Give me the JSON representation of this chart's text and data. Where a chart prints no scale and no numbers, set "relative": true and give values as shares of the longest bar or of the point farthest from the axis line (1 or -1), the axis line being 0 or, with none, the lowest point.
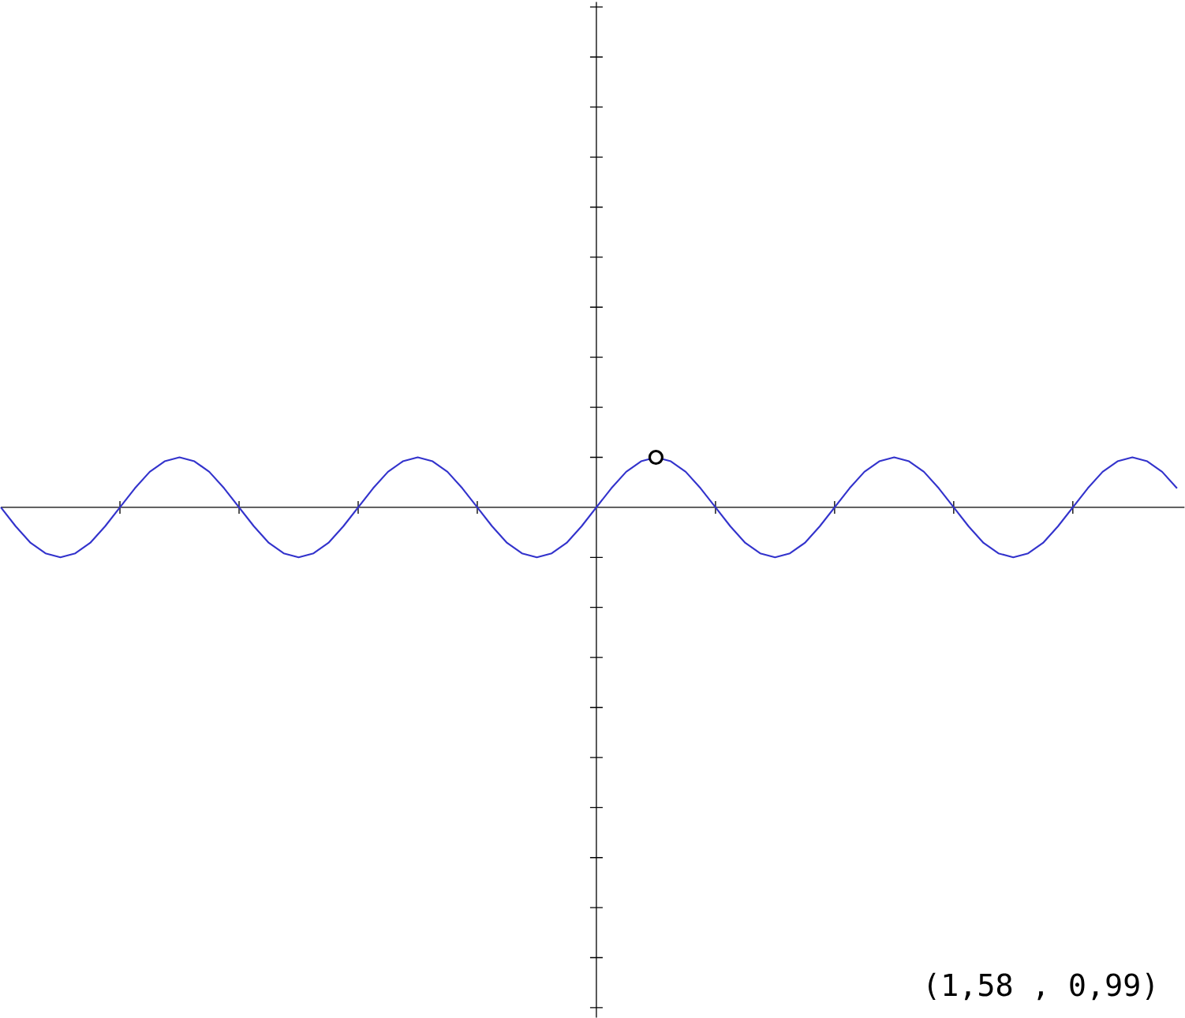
{
  "chart_data": {
    "type": "line",
    "relative": true,
    "categories": [
      null,
      null,
      null,
      null,
      null,
      null,
      null,
      null,
      null,
      null,
      null,
      null,
      null,
      null,
      null,
      null,
      null,
      null,
      null,
      null,
      null,
      null,
      null,
      null,
      null,
      null,
      null,
      null,
      null,
      null,
      null,
      null,
      null,
      null,
      null,
      null,
      null,
      null,
      null,
      null,
      null,
      null,
      null,
      null,
      null,
      null,
      null,
      null,
      null,
      null,
      null,
      null,
      null,
      null,
      null,
      null,
      null,
      null,
      null,
      null,
      null,
      null,
      null,
      null,
      null,
      null,
      null,
      null,
      null,
      null,
      null,
      null,
      null,
      null,
      null,
      null,
      null,
      null,
      null,
      null
    ],
    "series": [
      {
        "color": "#3333cc",
        "values": [
          0,
          -0.38,
          -0.71,
          -0.92,
          -1,
          -0.92,
          -0.71,
          -0.38,
          0,
          0.38,
          0.71,
          0.92,
          1,
          0.92,
          0.71,
          0.38,
          0,
          -0.38,
          -0.71,
          -0.92,
          -1,
          -0.92,
          -0.71,
          -0.38,
          0,
          0.38,
          0.71,
          0.92,
          1,
          0.92,
          0.71,
          0.38,
          0,
          -0.38,
          -0.71,
          -0.92,
          -1,
          -0.92,
          -0.71,
          -0.38,
          0,
          0.38,
          0.71,
          0.92,
          1,
          0.92,
          0.71,
          0.38,
          0,
          -0.38,
          -0.71,
          -0.92,
          -1,
          -0.92,
          -0.71,
          -0.38,
          0,
          0.38,
          0.71,
          0.92,
          1,
          0.92,
          0.71,
          0.38,
          0,
          -0.38,
          -0.71,
          -0.92,
          -1,
          -0.92,
          -0.71,
          -0.38,
          0,
          0.38,
          0.71,
          0.92,
          1,
          0.92,
          0.71,
          0.38
        ]
      }
    ],
    "annotations": [
      "(1,58 ,  0,99)"
    ]
  }
}
